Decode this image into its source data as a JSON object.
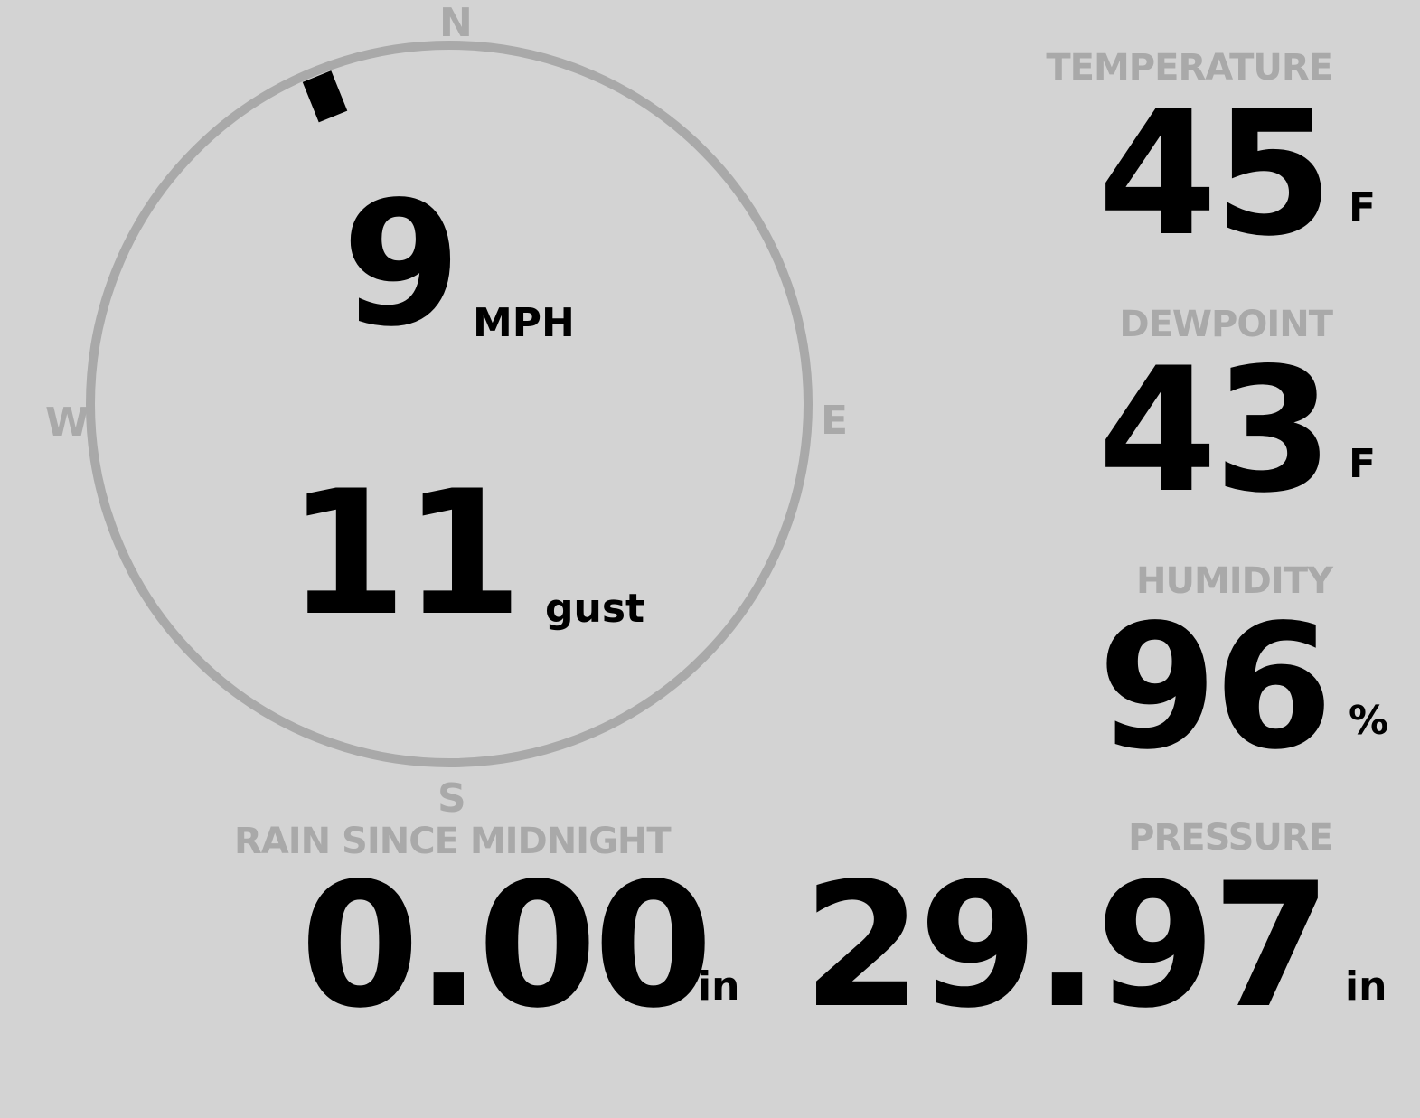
{
  "colors": {
    "background": "#d3d3d3",
    "label": "#a9a9a9",
    "value": "#000000"
  },
  "wind": {
    "direction_degrees": 338,
    "speed": "9",
    "speed_unit": "MPH",
    "gust": "11",
    "gust_unit": "gust",
    "cardinals": {
      "n": "N",
      "e": "E",
      "s": "S",
      "w": "W"
    }
  },
  "temperature": {
    "label": "TEMPERATURE",
    "value": "45",
    "unit": "F"
  },
  "dewpoint": {
    "label": "DEWPOINT",
    "value": "43",
    "unit": "F"
  },
  "humidity": {
    "label": "HUMIDITY",
    "value": "96",
    "unit": "%"
  },
  "rain": {
    "label": "RAIN SINCE MIDNIGHT",
    "value": "0.00",
    "unit": "in"
  },
  "pressure": {
    "label": "PRESSURE",
    "value": "29.97",
    "unit": "in"
  }
}
